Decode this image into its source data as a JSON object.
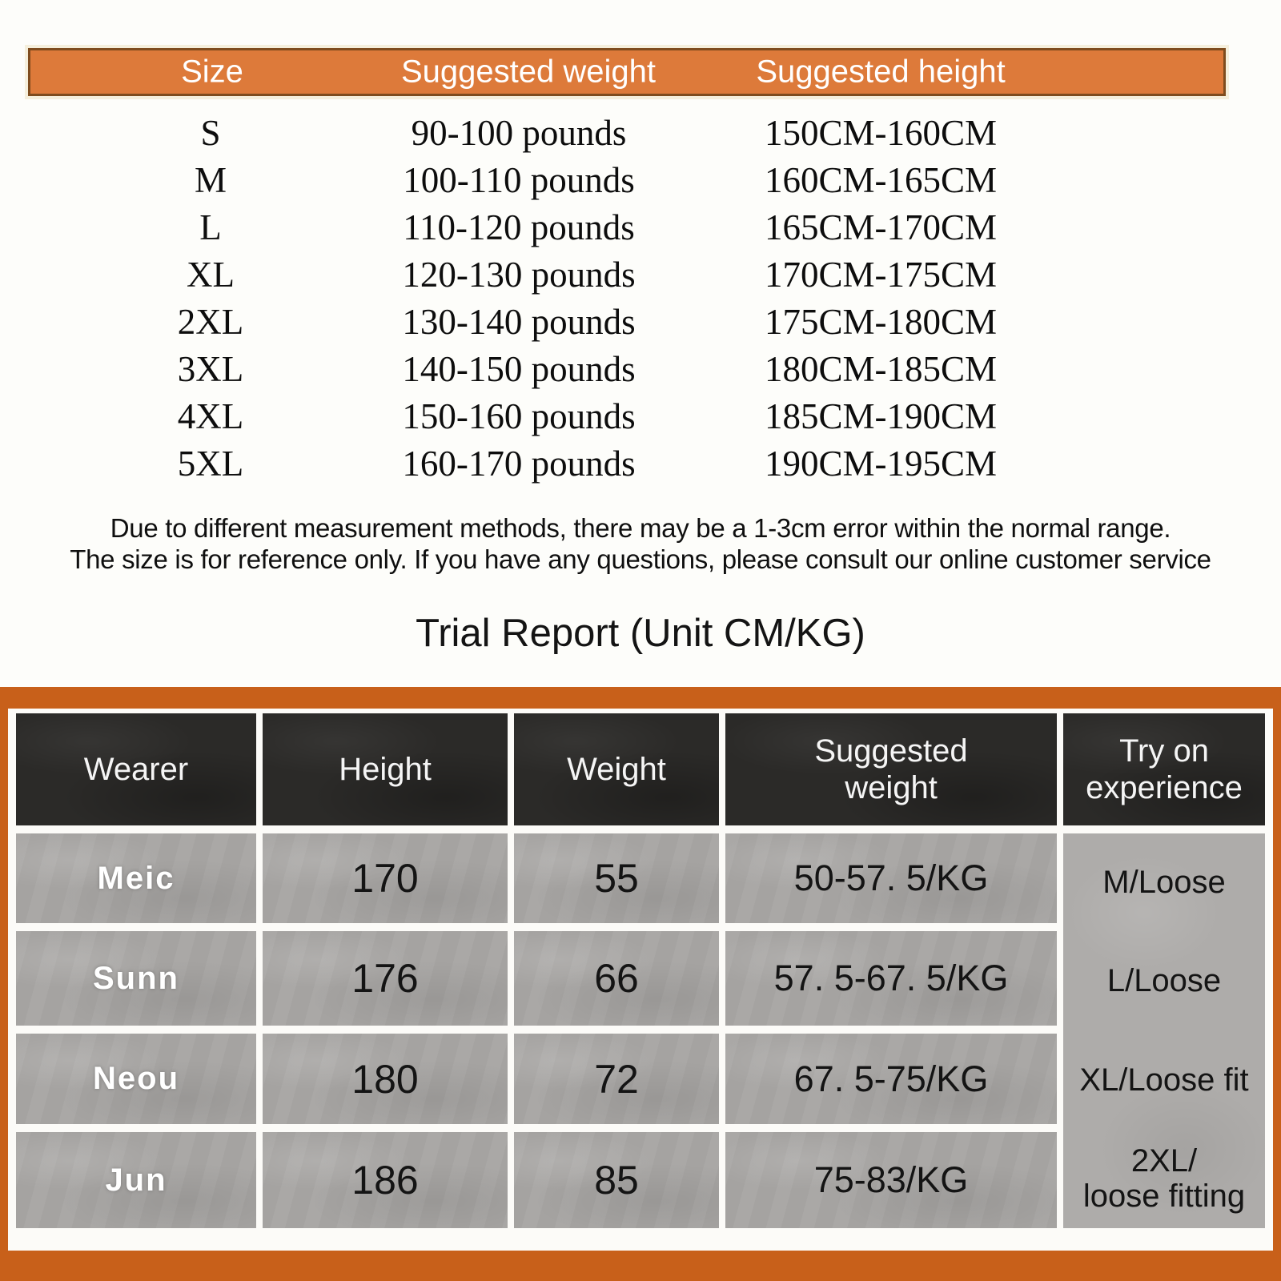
{
  "size_chart": {
    "headers": {
      "size": "Size",
      "weight": "Suggested weight",
      "height": "Suggested height"
    },
    "rows": [
      {
        "size": "S",
        "weight": "90-100 pounds",
        "height": "150CM-160CM"
      },
      {
        "size": "M",
        "weight": "100-110 pounds",
        "height": "160CM-165CM"
      },
      {
        "size": "L",
        "weight": "110-120 pounds",
        "height": "165CM-170CM"
      },
      {
        "size": "XL",
        "weight": "120-130 pounds",
        "height": "170CM-175CM"
      },
      {
        "size": "2XL",
        "weight": "130-140 pounds",
        "height": "175CM-180CM"
      },
      {
        "size": "3XL",
        "weight": "140-150 pounds",
        "height": "180CM-185CM"
      },
      {
        "size": "4XL",
        "weight": "150-160 pounds",
        "height": "185CM-190CM"
      },
      {
        "size": "5XL",
        "weight": "160-170 pounds",
        "height": "190CM-195CM"
      }
    ]
  },
  "disclaimer": {
    "line1": "Due to different measurement methods, there may be a 1-3cm error within the normal range.",
    "line2": "The size is for reference only. If you have any questions, please consult our online customer service"
  },
  "trial_report": {
    "title": "Trial Report (Unit CM/KG)",
    "headers": {
      "wearer": "Wearer",
      "height": "Height",
      "weight": "Weight",
      "suggested_weight": "Suggested\nweight",
      "try_on": "Try on\nexperience"
    },
    "rows": [
      {
        "wearer": "Meic",
        "height": "170",
        "weight": "55",
        "suggested_weight": "50-57. 5/KG"
      },
      {
        "wearer": "Sunn",
        "height": "176",
        "weight": "66",
        "suggested_weight": "57. 5-67. 5/KG"
      },
      {
        "wearer": "Neou",
        "height": "180",
        "weight": "72",
        "suggested_weight": "67. 5-75/KG"
      },
      {
        "wearer": "Jun",
        "height": "186",
        "weight": "85",
        "suggested_weight": "75-83/KG"
      }
    ],
    "try_on_values": [
      "M/Loose",
      "L/Loose",
      "XL/Loose fit",
      "2XL/\nloose fitting"
    ]
  },
  "colors": {
    "top_header_orange": "#dd7a3a",
    "top_header_border": "#7e4c1e",
    "table_frame_orange": "#c8601a",
    "header_cell_dark": "#2b2a28",
    "data_cell_gray": "#a5a3a1",
    "tryon_cell_gray": "#aeacaa"
  }
}
